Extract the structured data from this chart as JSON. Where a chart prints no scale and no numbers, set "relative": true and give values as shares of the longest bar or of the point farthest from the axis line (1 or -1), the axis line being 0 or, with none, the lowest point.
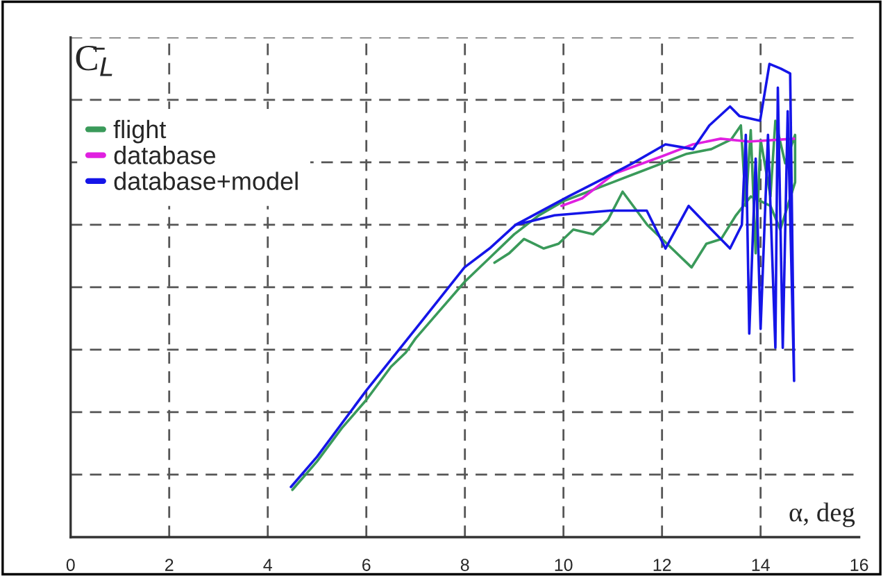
{
  "chart_data": {
    "type": "line",
    "relative": true,
    "ylabel": "C̄$_{L}$",
    "xlabel": "α, deg",
    "xlim": [
      0,
      16
    ],
    "xticks": [
      0,
      2,
      4,
      6,
      8,
      10,
      12,
      14,
      16
    ],
    "grid": true,
    "legend": "top left",
    "marker": "none",
    "line_style": "solid",
    "series": [
      {
        "name": "flight",
        "color": "#3a9a5a",
        "x": [
          4.5,
          5.0,
          5.5,
          6.0,
          6.5,
          6.8,
          7.0,
          7.5,
          8.0,
          8.5,
          9.0,
          9.5,
          10.0,
          10.5,
          11.0,
          11.5,
          12.0,
          12.5,
          13.0,
          13.4,
          13.6,
          13.7,
          13.8,
          13.9,
          14.0,
          14.2,
          14.3,
          14.5,
          14.7,
          14.7,
          14.4,
          14.2,
          13.8,
          13.5,
          13.2,
          12.9,
          12.6,
          12.1,
          11.7,
          11.2,
          10.9,
          10.6,
          10.2,
          9.9,
          9.6,
          9.2,
          8.9,
          8.6
        ],
        "values": [
          0.1,
          0.16,
          0.23,
          0.29,
          0.36,
          0.39,
          0.42,
          0.48,
          0.54,
          0.59,
          0.64,
          0.68,
          0.71,
          0.73,
          0.75,
          0.77,
          0.79,
          0.81,
          0.82,
          0.84,
          0.87,
          0.7,
          0.86,
          0.6,
          0.84,
          0.72,
          0.88,
          0.79,
          0.85,
          0.75,
          0.65,
          0.7,
          0.72,
          0.68,
          0.63,
          0.62,
          0.57,
          0.62,
          0.66,
          0.73,
          0.67,
          0.64,
          0.65,
          0.62,
          0.61,
          0.63,
          0.6,
          0.58
        ]
      },
      {
        "name": "database",
        "color": "#e020e0",
        "x": [
          9.96,
          10.38,
          11.03,
          11.98,
          12.63,
          13.19,
          13.76,
          14.68
        ],
        "values": [
          0.7,
          0.716,
          0.768,
          0.804,
          0.83,
          0.842,
          0.836,
          0.842
        ]
      },
      {
        "name": "database+model",
        "color": "#1515e8",
        "x": [
          4.47,
          5.0,
          6.0,
          7.0,
          7.99,
          8.5,
          9.03,
          10.1,
          10.85,
          11.4,
          12.07,
          12.63,
          12.96,
          13.38,
          13.57,
          13.99,
          14.18,
          14.41,
          14.6,
          14.68,
          14.55,
          14.45,
          14.35,
          14.3,
          14.15,
          14.0,
          13.9,
          13.77,
          13.7,
          13.62,
          13.38,
          12.91,
          12.54,
          12.07,
          11.69,
          10.95,
          9.82,
          9.03
        ],
        "values": [
          0.106,
          0.17,
          0.31,
          0.44,
          0.57,
          0.61,
          0.66,
          0.72,
          0.76,
          0.79,
          0.83,
          0.82,
          0.87,
          0.91,
          0.89,
          0.88,
          1.0,
          0.99,
          0.98,
          0.33,
          0.9,
          0.4,
          0.95,
          0.4,
          0.85,
          0.44,
          0.8,
          0.43,
          0.85,
          0.66,
          0.61,
          0.66,
          0.7,
          0.61,
          0.69,
          0.69,
          0.68,
          0.66
        ]
      }
    ]
  }
}
